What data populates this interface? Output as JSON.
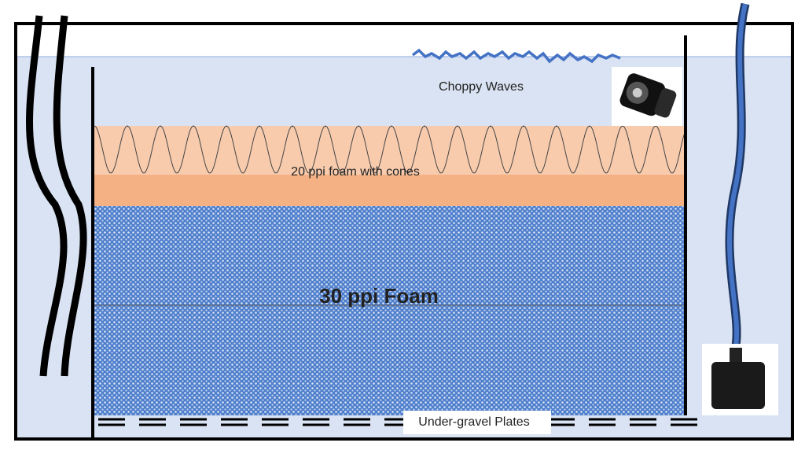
{
  "labels": {
    "waves": "Choppy Waves",
    "top_foam": "20 ppi foam with cones",
    "main_foam": "30 ppi Foam",
    "plates": "Under-gravel Plates"
  }
}
